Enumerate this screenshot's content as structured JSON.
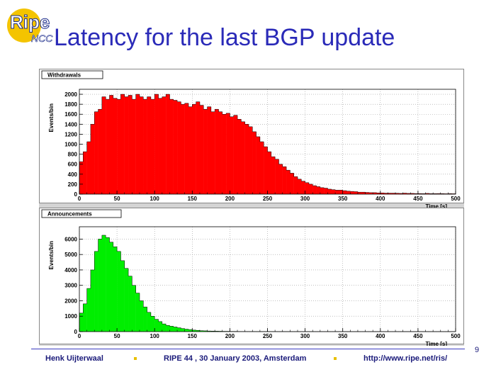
{
  "slide": {
    "title": "Latency for the last BGP update",
    "logo_text": "Ripe",
    "logo_sub": "NCC",
    "page_number": "9"
  },
  "footer": {
    "author": "Henk Uijterwaal",
    "event": "RIPE 44 ,  30 January 2003, Amsterdam",
    "url": "http://www.ripe.net/ris/"
  },
  "colors": {
    "title": "#2a2ab8",
    "withdrawals_fill": "#ff0000",
    "announcements_fill": "#00ee00",
    "plot_background": "#d4d4d4",
    "logo_yellow": "#f4c400"
  },
  "chart_data": [
    {
      "type": "bar",
      "title": "Withdrawals",
      "xlabel": "Time [s]",
      "ylabel": "Events/bin",
      "xlim": [
        0,
        500
      ],
      "ylim": [
        0,
        2100
      ],
      "xticks": [
        0,
        50,
        100,
        150,
        200,
        250,
        300,
        350,
        400,
        450,
        500
      ],
      "yticks": [
        0,
        200,
        400,
        600,
        800,
        1000,
        1200,
        1400,
        1600,
        1800,
        2000
      ],
      "grid": true,
      "bin_width": 5,
      "values": [
        650,
        850,
        1050,
        1400,
        1650,
        1700,
        1950,
        1900,
        1980,
        1920,
        1900,
        2000,
        1950,
        1980,
        1900,
        2000,
        1950,
        1900,
        1950,
        1900,
        2000,
        1920,
        1950,
        2000,
        1900,
        1880,
        1850,
        1800,
        1820,
        1750,
        1800,
        1850,
        1780,
        1700,
        1750,
        1650,
        1700,
        1650,
        1600,
        1620,
        1550,
        1580,
        1500,
        1450,
        1400,
        1350,
        1250,
        1150,
        1050,
        950,
        850,
        750,
        700,
        600,
        550,
        480,
        420,
        350,
        300,
        260,
        230,
        200,
        170,
        150,
        130,
        120,
        100,
        90,
        80,
        80,
        70,
        60,
        55,
        50,
        40,
        40,
        35,
        30,
        30,
        25,
        25,
        20,
        20,
        20,
        18,
        15,
        20,
        15,
        15,
        12,
        12,
        10,
        15,
        10,
        10,
        12,
        10,
        8,
        10,
        8
      ]
    },
    {
      "type": "bar",
      "title": "Announcements",
      "xlabel": "Time [s]",
      "ylabel": "Events/bin",
      "xlim": [
        0,
        500
      ],
      "ylim": [
        0,
        6800
      ],
      "xticks": [
        0,
        50,
        100,
        150,
        200,
        250,
        300,
        350,
        400,
        450,
        500
      ],
      "yticks": [
        0,
        1000,
        2000,
        3000,
        4000,
        5000,
        6000
      ],
      "grid": true,
      "bin_width": 5,
      "values": [
        1200,
        1800,
        2800,
        4000,
        5200,
        6000,
        6250,
        6100,
        5800,
        5500,
        5200,
        4600,
        4100,
        3600,
        3000,
        2500,
        2000,
        1600,
        1250,
        1000,
        800,
        650,
        500,
        400,
        350,
        300,
        250,
        200,
        160,
        130,
        100,
        80,
        60,
        50,
        40,
        35,
        30,
        25,
        20,
        20,
        15,
        15,
        12,
        10,
        10,
        8,
        8,
        5,
        5,
        5,
        4,
        4,
        3,
        3,
        3,
        2,
        2,
        2,
        2,
        1,
        1,
        1,
        1,
        1,
        1,
        1,
        0,
        0,
        0,
        0,
        0,
        0,
        0,
        0,
        0,
        0,
        0,
        0,
        0,
        0,
        0,
        0,
        0,
        0,
        0,
        0,
        0,
        0,
        0,
        0,
        0,
        0,
        0,
        0,
        0,
        0,
        0,
        0,
        0,
        0
      ]
    }
  ]
}
